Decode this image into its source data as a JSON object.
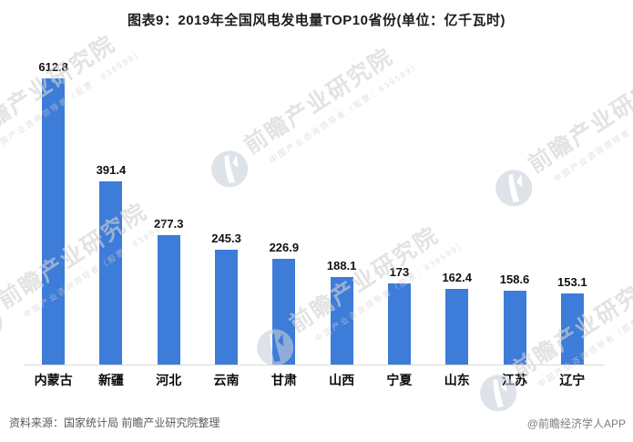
{
  "chart_data": {
    "type": "bar",
    "title": "图表9：2019年全国风电发电量TOP10省份(单位：亿千瓦时)",
    "categories": [
      "内蒙古",
      "新疆",
      "河北",
      "云南",
      "甘肃",
      "山西",
      "宁夏",
      "山东",
      "江苏",
      "辽宁"
    ],
    "values": [
      612.8,
      391.4,
      277.3,
      245.3,
      226.9,
      188.1,
      173,
      162.4,
      158.6,
      153.1
    ],
    "unit": "亿千瓦时",
    "xlabel": "",
    "ylabel": "",
    "ylim": [
      0,
      650
    ],
    "grid": false,
    "legend": "none",
    "data_labels": true
  },
  "footer": {
    "source": "资料来源：国家统计局 前瞻产业研究院整理",
    "credit": "@前瞻经济学人APP"
  },
  "watermark": {
    "brand": "前瞻产业研究院",
    "tagline": "中国产业咨询领导者（股票：839599）",
    "logo_icon": "qianzhan-logo-icon"
  },
  "colors": {
    "bar": "#3d7cd8",
    "axis_line": "#d9d9d9",
    "title_text": "#1d1d1d",
    "label_text": "#111111",
    "footer_text": "#595959",
    "watermark_text": "#d2d2d2"
  }
}
